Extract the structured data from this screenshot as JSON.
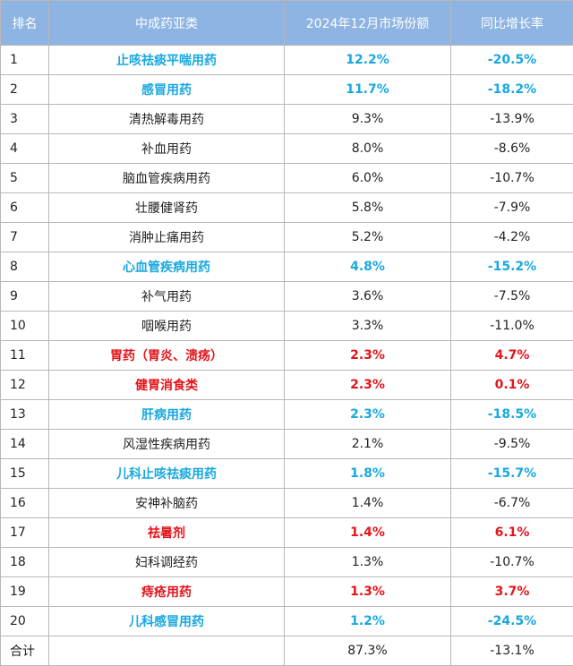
{
  "headers": {
    "rank": "排名",
    "category": "中成药亚类",
    "share": "2024年12月市场份额",
    "growth": "同比增长率"
  },
  "colors": {
    "header_bg": "#8db4e2",
    "header_text": "#ffffff",
    "highlight_decline": "#18a8e0",
    "highlight_growth": "#e4141b",
    "border": "#b7b7b7"
  },
  "rows": [
    {
      "rank": "1",
      "category": "止咳祛痰平喘用药",
      "share": "12.2%",
      "growth": "-20.5%",
      "highlight": "blue"
    },
    {
      "rank": "2",
      "category": "感冒用药",
      "share": "11.7%",
      "growth": "-18.2%",
      "highlight": "blue"
    },
    {
      "rank": "3",
      "category": "清热解毒用药",
      "share": "9.3%",
      "growth": "-13.9%",
      "highlight": "none"
    },
    {
      "rank": "4",
      "category": "补血用药",
      "share": "8.0%",
      "growth": "-8.6%",
      "highlight": "none"
    },
    {
      "rank": "5",
      "category": "脑血管疾病用药",
      "share": "6.0%",
      "growth": "-10.7%",
      "highlight": "none"
    },
    {
      "rank": "6",
      "category": "壮腰健肾药",
      "share": "5.8%",
      "growth": "-7.9%",
      "highlight": "none"
    },
    {
      "rank": "7",
      "category": "消肿止痛用药",
      "share": "5.2%",
      "growth": "-4.2%",
      "highlight": "none"
    },
    {
      "rank": "8",
      "category": "心血管疾病用药",
      "share": "4.8%",
      "growth": "-15.2%",
      "highlight": "blue"
    },
    {
      "rank": "9",
      "category": "补气用药",
      "share": "3.6%",
      "growth": "-7.5%",
      "highlight": "none"
    },
    {
      "rank": "10",
      "category": "咽喉用药",
      "share": "3.3%",
      "growth": "-11.0%",
      "highlight": "none"
    },
    {
      "rank": "11",
      "category": "胃药（胃炎、溃疡）",
      "share": "2.3%",
      "growth": "4.7%",
      "highlight": "red"
    },
    {
      "rank": "12",
      "category": "健胃消食类",
      "share": "2.3%",
      "growth": "0.1%",
      "highlight": "red"
    },
    {
      "rank": "13",
      "category": "肝病用药",
      "share": "2.3%",
      "growth": "-18.5%",
      "highlight": "blue"
    },
    {
      "rank": "14",
      "category": "风湿性疾病用药",
      "share": "2.1%",
      "growth": "-9.5%",
      "highlight": "none"
    },
    {
      "rank": "15",
      "category": "儿科止咳祛痰用药",
      "share": "1.8%",
      "growth": "-15.7%",
      "highlight": "blue"
    },
    {
      "rank": "16",
      "category": "安神补脑药",
      "share": "1.4%",
      "growth": "-6.7%",
      "highlight": "none"
    },
    {
      "rank": "17",
      "category": "祛暑剂",
      "share": "1.4%",
      "growth": "6.1%",
      "highlight": "red"
    },
    {
      "rank": "18",
      "category": "妇科调经药",
      "share": "1.3%",
      "growth": "-10.7%",
      "highlight": "none"
    },
    {
      "rank": "19",
      "category": "痔疮用药",
      "share": "1.3%",
      "growth": "3.7%",
      "highlight": "red"
    },
    {
      "rank": "20",
      "category": "儿科感冒用药",
      "share": "1.2%",
      "growth": "-24.5%",
      "highlight": "blue"
    }
  ],
  "total": {
    "label": "合计",
    "category": "",
    "share": "87.3%",
    "growth": "-13.1%"
  }
}
